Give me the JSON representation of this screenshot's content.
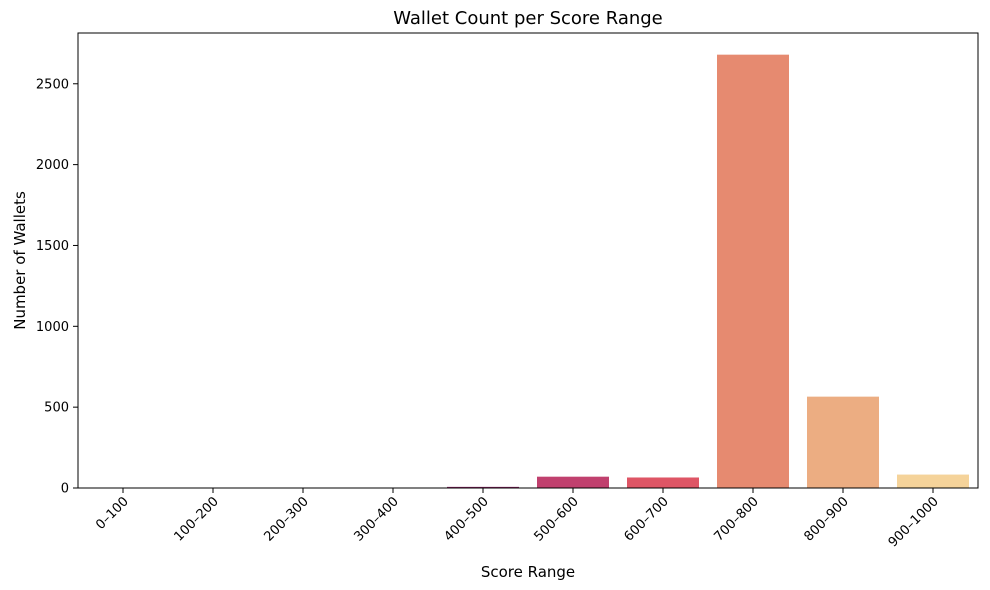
{
  "chart_data": {
    "type": "bar",
    "title": "Wallet Count per Score Range",
    "xlabel": "Score Range",
    "ylabel": "Number of Wallets",
    "categories": [
      "0–100",
      "100–200",
      "200–300",
      "300–400",
      "400–500",
      "500–600",
      "600–700",
      "700–800",
      "800–900",
      "900–1000"
    ],
    "values": [
      0,
      0,
      0,
      0,
      7,
      70,
      65,
      2680,
      565,
      83
    ],
    "colors": [
      "#2b1030",
      "#3f1449",
      "#5c1a5e",
      "#7a1f66",
      "#8f2466",
      "#c0406e",
      "#de5565",
      "#e68a70",
      "#ecad82",
      "#f5d39a"
    ],
    "ylim": [
      0,
      2814
    ],
    "yticks": [
      0,
      500,
      1000,
      1500,
      2000,
      2500
    ],
    "grid": false,
    "legend": "none"
  }
}
